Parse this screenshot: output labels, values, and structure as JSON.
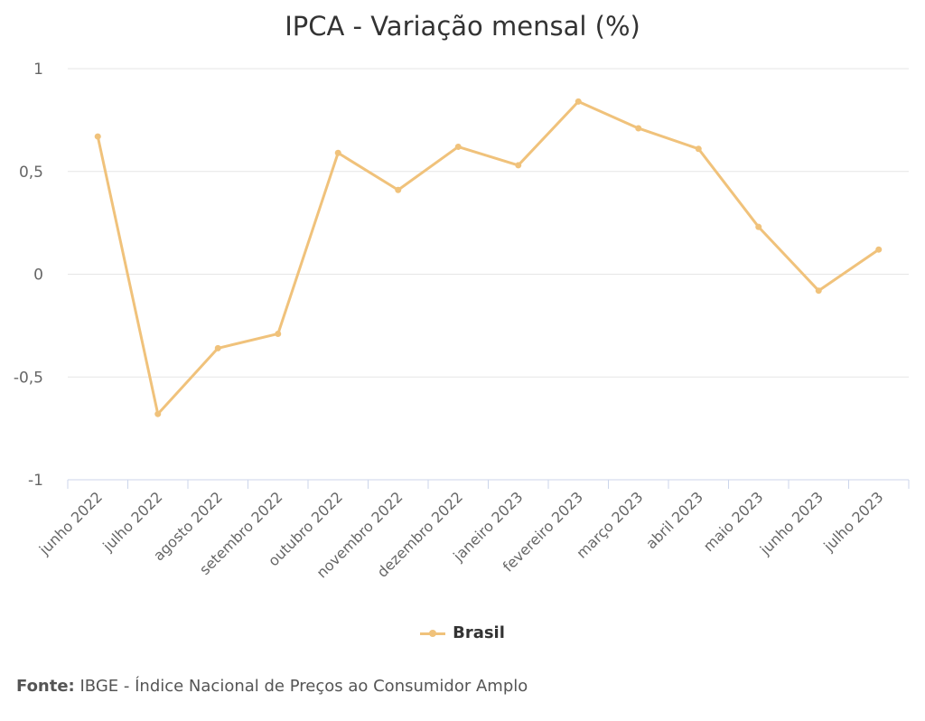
{
  "chart_data": {
    "type": "line",
    "title": "IPCA - Variação mensal (%)",
    "xlabel": "",
    "ylabel": "",
    "categories": [
      "junho 2022",
      "julho 2022",
      "agosto 2022",
      "setembro 2022",
      "outubro 2022",
      "novembro 2022",
      "dezembro 2022",
      "janeiro 2023",
      "fevereiro 2023",
      "março 2023",
      "abril 2023",
      "maio 2023",
      "junho 2023",
      "julho 2023"
    ],
    "series": [
      {
        "name": "Brasil",
        "values": [
          0.67,
          -0.68,
          -0.36,
          -0.29,
          0.59,
          0.41,
          0.62,
          0.53,
          0.84,
          0.71,
          0.61,
          0.23,
          -0.08,
          0.12
        ]
      }
    ],
    "ylim": [
      -1,
      1
    ],
    "yticks": [
      1,
      0.5,
      0,
      -0.5,
      -1
    ],
    "ytick_labels": [
      "1",
      "0,5",
      "0",
      "-0,5",
      "-1"
    ],
    "grid": true,
    "legend_position": "bottom-center",
    "colors": {
      "series": "#f0c27b",
      "grid": "#e6e6e6",
      "axis": "#ccd6eb"
    }
  },
  "source": {
    "label": "Fonte:",
    "text": "IBGE - Índice Nacional de Preços ao Consumidor Amplo"
  }
}
